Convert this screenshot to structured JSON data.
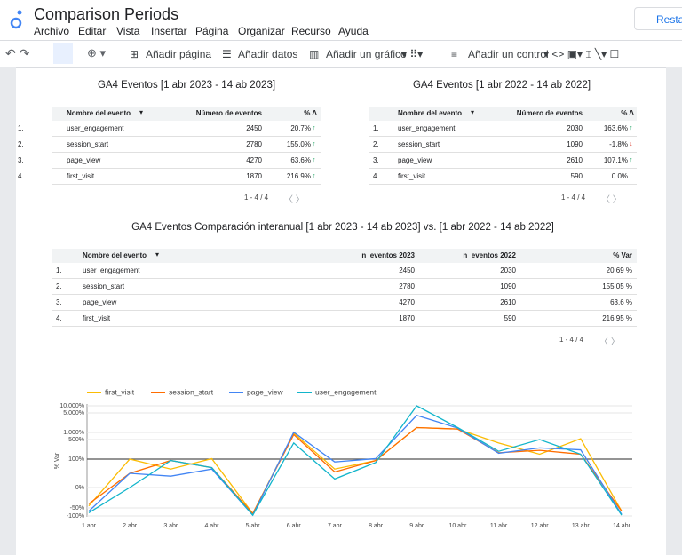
{
  "header": {
    "title": "Comparison Periods",
    "menu": [
      "Archivo",
      "Editar",
      "Vista",
      "Insertar",
      "Página",
      "Organizar",
      "Recurso",
      "Ayuda"
    ],
    "button": "Resta"
  },
  "toolbar": {
    "items": [
      "Añadir página",
      "Añadir datos",
      "Añadir un gráfico",
      "Añadir un control"
    ]
  },
  "tables": [
    {
      "title": "GA4 Eventos [1 abr 2023 - 14 ab 2023]",
      "columns": [
        "Nombre del evento",
        "Número de eventos",
        "% Δ"
      ],
      "rows": [
        [
          "1.",
          "user_engagement",
          "2450",
          "20.7%"
        ],
        [
          "2.",
          "session_start",
          "2780",
          "155.0%"
        ],
        [
          "3.",
          "page_view",
          "4270",
          "63.6%"
        ],
        [
          "4.",
          "first_visit",
          "1870",
          "216.9%"
        ]
      ],
      "trends": [
        "up",
        "up",
        "up",
        "up"
      ],
      "pagination": "1 - 4 / 4"
    },
    {
      "title": "GA4 Eventos [1 abr 2022 - 14 ab 2022]",
      "columns": [
        "Nombre del evento",
        "Número de eventos",
        "% Δ"
      ],
      "rows": [
        [
          "1.",
          "user_engagement",
          "2030",
          "163.6%"
        ],
        [
          "2.",
          "session_start",
          "1090",
          "-1.8%"
        ],
        [
          "3.",
          "page_view",
          "2610",
          "107.1%"
        ],
        [
          "4.",
          "first_visit",
          "590",
          "0.0%"
        ]
      ],
      "trends": [
        "up",
        "down",
        "up",
        "none"
      ],
      "pagination": "1 - 4 / 4"
    },
    {
      "title": "GA4 Eventos Comparación interanual [1 abr 2023 - 14 ab 2023] vs. [1 abr 2022 - 14 ab 2022]",
      "columns": [
        "Nombre del evento",
        "n_eventos 2023",
        "n_eventos 2022",
        "% Var"
      ],
      "rows": [
        [
          "1.",
          "user_engagement",
          "2450",
          "2030",
          "20,69 %"
        ],
        [
          "2.",
          "session_start",
          "2780",
          "1090",
          "155,05 %"
        ],
        [
          "3.",
          "page_view",
          "4270",
          "2610",
          "63,6 %"
        ],
        [
          "4.",
          "first_visit",
          "1870",
          "590",
          "216,95 %"
        ]
      ],
      "pagination": "1 - 4 / 4"
    }
  ],
  "chart_data": {
    "type": "line",
    "ylabel": "% Var",
    "categories": [
      "1 abr",
      "2 abr",
      "3 abr",
      "4 abr",
      "5 abr",
      "6 abr",
      "7 abr",
      "8 abr",
      "9 abr",
      "10 abr",
      "11 abr",
      "12 abr",
      "13 abr",
      "14 abr"
    ],
    "series": [
      {
        "name": "first_visit",
        "color": "#fbbc04",
        "values": [
          -45,
          100,
          65,
          110,
          -85,
          950,
          65,
          95,
          2000,
          1700,
          430,
          200,
          560,
          -70
        ]
      },
      {
        "name": "session_start",
        "color": "#ff6d01",
        "values": [
          -40,
          50,
          95,
          70,
          -85,
          850,
          55,
          95,
          2000,
          1700,
          230,
          280,
          200,
          -70
        ]
      },
      {
        "name": "page_view",
        "color": "#4285f4",
        "values": [
          -70,
          50,
          40,
          65,
          -95,
          1050,
          90,
          110,
          4500,
          1900,
          220,
          330,
          290,
          -90
        ]
      },
      {
        "name": "user_engagement",
        "color": "#12b5cb",
        "values": [
          -80,
          0,
          95,
          70,
          -95,
          430,
          30,
          88,
          10000,
          2000,
          260,
          500,
          200,
          -95
        ]
      }
    ],
    "ylim": [
      -100,
      10000
    ],
    "yticks": [
      {
        "value": 10000,
        "label": "10.000%"
      },
      {
        "value": 5000,
        "label": "5.000%"
      },
      {
        "value": 1000,
        "label": "1.000%"
      },
      {
        "value": 500,
        "label": "500%"
      },
      {
        "value": 100,
        "label": "100%"
      },
      {
        "value": 0,
        "label": "0%"
      },
      {
        "value": -50,
        "label": "-50%"
      },
      {
        "value": -100,
        "label": "-100%"
      }
    ],
    "reference": 100,
    "grid": true,
    "legend": "top"
  }
}
